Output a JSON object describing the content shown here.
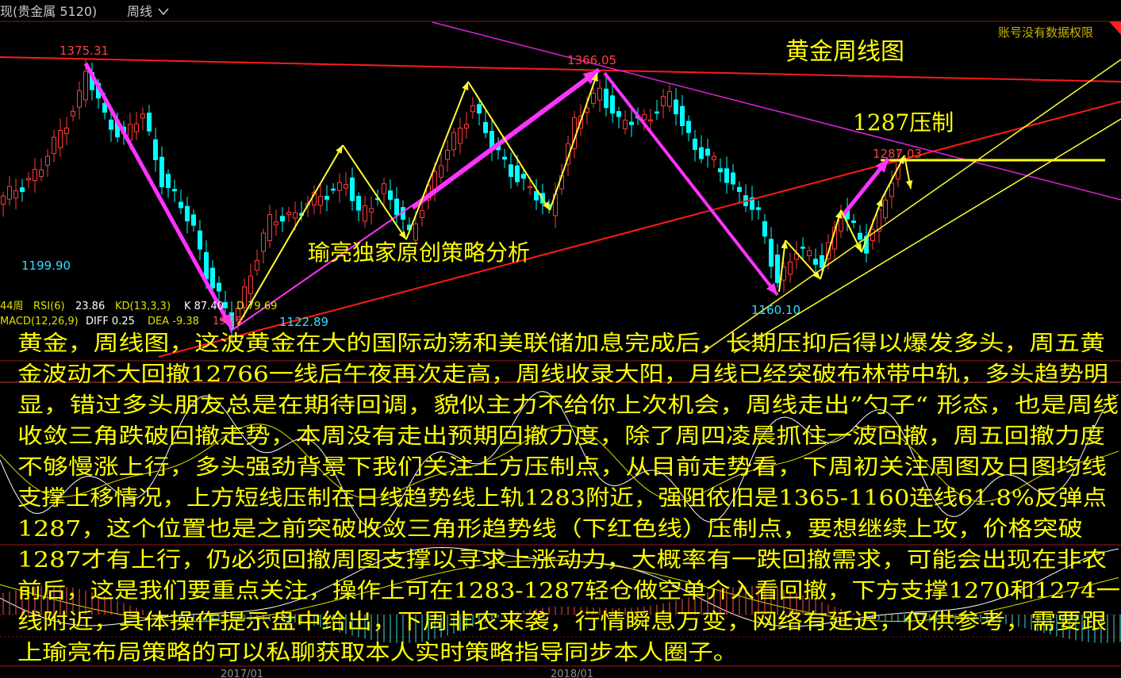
{
  "header": {
    "symbol": "现(贵金属 5120)",
    "period": "周线",
    "period_icon": "chevron-down-icon",
    "permission_notice": "账号没有数据权限"
  },
  "colors": {
    "background": "#000000",
    "up_candle": "#ff3c3c",
    "down_candle": "#00ffff",
    "annotation_text": "#ffff00",
    "trend_red": "#ff1a1a",
    "trend_magenta": "#ff33ff",
    "trend_yellow": "#ffff33",
    "notice": "#c8b400"
  },
  "price_labels": {
    "high_1": "1375.31",
    "high_2": "1366.05",
    "low_1": "1199.90",
    "low_2": "1122.89",
    "low_3": "1160.10",
    "resistance": "1287.03"
  },
  "annotations": {
    "title": "黄金周线图",
    "resistance_note": "1287压制",
    "author_note": "瑜亮独家原创策略分析"
  },
  "indicators": {
    "period_count": "44周",
    "rsi_label": "RSI(6)",
    "rsi_value": "23.86",
    "kd_label": "KD(13,3,3)",
    "k_value": "K 87.40",
    "d_value": "D 79.69",
    "macd_label": "MACD(12,26,9)",
    "diff_value": "DIFF 0.25",
    "dea_value": "DEA -9.38",
    "macd_value": "19.25"
  },
  "x_axis": {
    "labels": [
      "2017/01",
      "2018/01"
    ]
  },
  "price_path_weekly": [
    [
      0,
      1250
    ],
    [
      6,
      1280
    ],
    [
      12,
      1350
    ],
    [
      13,
      1372
    ],
    [
      16,
      1330
    ],
    [
      19,
      1310
    ],
    [
      22,
      1332
    ],
    [
      25,
      1270
    ],
    [
      30,
      1222
    ],
    [
      32,
      1180
    ],
    [
      36,
      1128
    ],
    [
      39,
      1180
    ],
    [
      42,
      1228
    ],
    [
      47,
      1240
    ],
    [
      54,
      1268
    ],
    [
      56,
      1232
    ],
    [
      60,
      1262
    ],
    [
      64,
      1214
    ],
    [
      67,
      1262
    ],
    [
      74,
      1342
    ],
    [
      77,
      1300
    ],
    [
      81,
      1272
    ],
    [
      86,
      1238
    ],
    [
      90,
      1322
    ],
    [
      94,
      1358
    ],
    [
      97,
      1322
    ],
    [
      102,
      1332
    ],
    [
      105,
      1348
    ],
    [
      109,
      1300
    ],
    [
      114,
      1272
    ],
    [
      119,
      1232
    ],
    [
      122,
      1172
    ],
    [
      125,
      1200
    ],
    [
      129,
      1190
    ],
    [
      132,
      1236
    ],
    [
      136,
      1206
    ],
    [
      139,
      1250
    ],
    [
      141,
      1283
    ]
  ],
  "commentary_lines": [
    "黄金，周线图，这波黄金在大的国际动荡和美联储加息完成后，长期压抑后得以爆发多头，周五黄",
    "金波动不大回撤12766一线后午夜再次走高，周线收录大阳，月线已经突破布林带中轨，多头趋势明",
    "显，错过多头朋友总是在期待回调，貌似主力不给你上次机会，周线走出”勺子“ 形态，也是周线",
    "收敛三角跌破回撤走势，本周没有走出预期回撤力度，除了周四凌晨抓住一波回撤，周五回撤力度",
    "不够慢涨上行，多头强劲背景下我们关注上方压制点，从目前走势看，下周初关注周图及日图均线",
    "支撑上移情况，上方短线压制在日线趋势线上轨1283附近，强阻依旧是1365-1160连线61.8%反弹点",
    "1287，这个位置也是之前突破收敛三角形趋势线（下红色线）压制点，要想继续上攻，价格突破",
    "1287才有上行，仍必须回撤周图支撑以寻求上涨动力，大概率有一跌回撤需求，可能会出现在非农",
    "前后，这是我们要重点关注，操作上可在1283-1287轻仓做空单介入看回撤，下方支撑1270和1274一",
    "线附近，具体操作提示盘中给出，下周非农来袭，行情瞬息万变，网络有延迟，仅供参考，需要跟",
    "上瑜亮布局策略的可以私聊获取本人实时策略指导同步本人圈子。"
  ]
}
